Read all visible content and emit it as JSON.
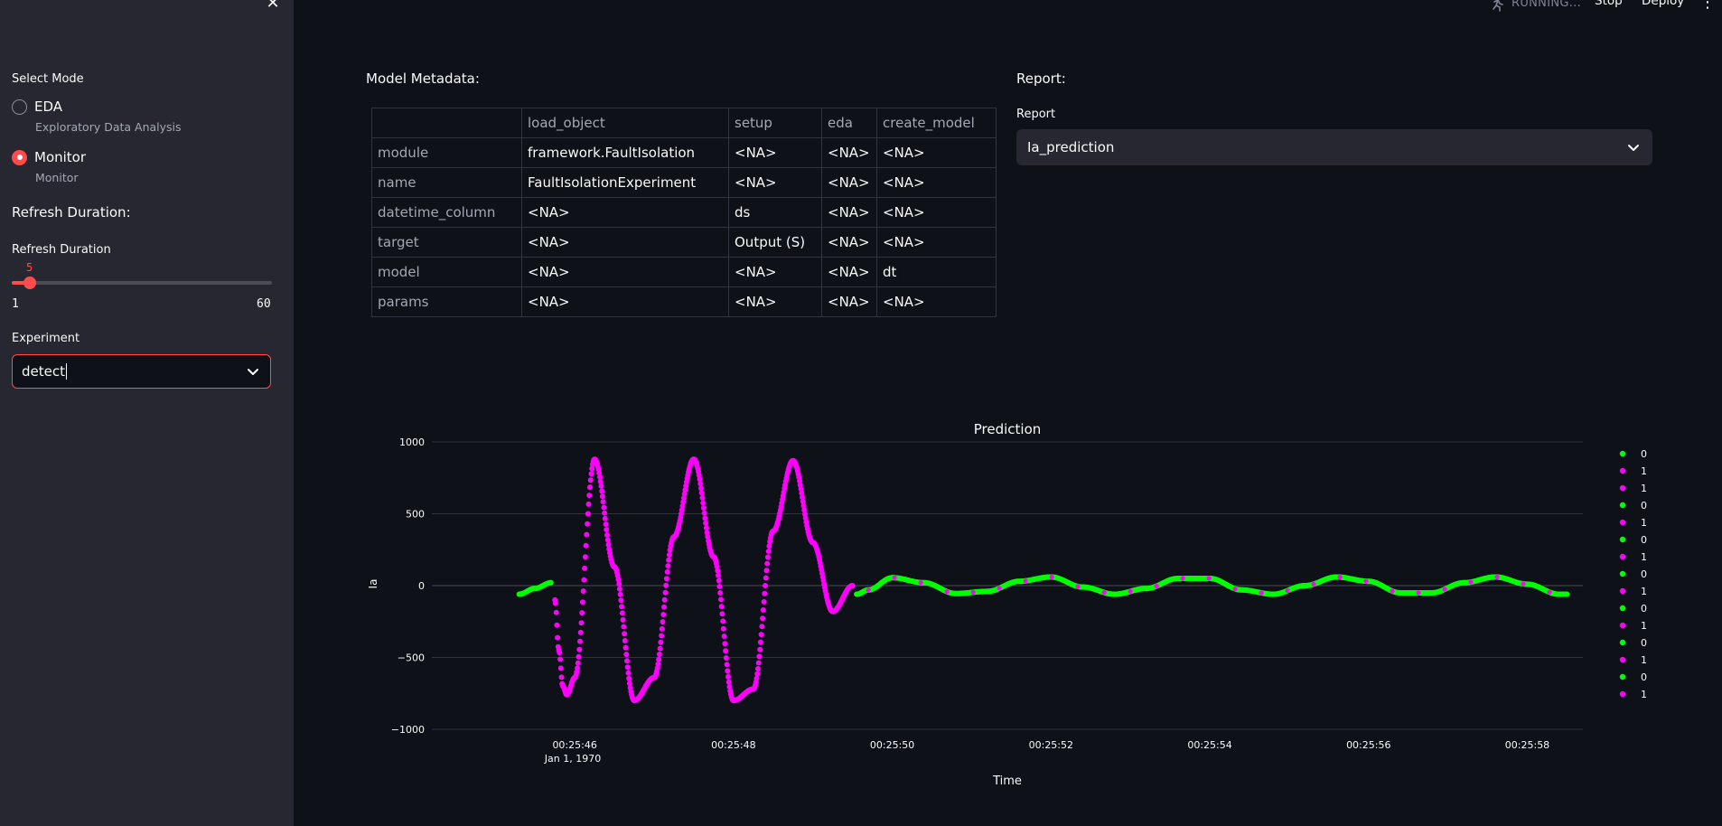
{
  "sidebar": {
    "close_icon": "close-icon",
    "mode_label": "Select Mode",
    "modes": [
      {
        "label": "EDA",
        "caption": "Exploratory Data Analysis",
        "selected": false
      },
      {
        "label": "Monitor",
        "caption": "Monitor",
        "selected": true
      }
    ],
    "refresh_heading": "Refresh Duration:",
    "refresh_label": "Refresh Duration",
    "refresh_value": "5",
    "refresh_min": "1",
    "refresh_max": "60",
    "experiment_label": "Experiment",
    "experiment_value": "detect"
  },
  "header": {
    "status": "RUNNING...",
    "stop": "Stop",
    "deploy": "Deploy",
    "menu_icon": "kebab-menu-icon"
  },
  "metadata": {
    "title": "Model Metadata:",
    "columns": [
      "",
      "load_object",
      "setup",
      "eda",
      "create_model"
    ],
    "rows": [
      [
        "module",
        "framework.FaultIsolation",
        "<NA>",
        "<NA>",
        "<NA>"
      ],
      [
        "name",
        "FaultIsolationExperiment",
        "<NA>",
        "<NA>",
        "<NA>"
      ],
      [
        "datetime_column",
        "<NA>",
        "ds",
        "<NA>",
        "<NA>"
      ],
      [
        "target",
        "<NA>",
        "Output (S)",
        "<NA>",
        "<NA>"
      ],
      [
        "model",
        "<NA>",
        "<NA>",
        "<NA>",
        "dt"
      ],
      [
        "params",
        "<NA>",
        "<NA>",
        "<NA>",
        "<NA>"
      ]
    ]
  },
  "report": {
    "title": "Report:",
    "label": "Report",
    "value": "Ia_prediction"
  },
  "colors": {
    "accent": "#ff4b4b",
    "class0": "#00ff00",
    "class1": "#ff00ff"
  },
  "chart_data": {
    "type": "scatter",
    "title": "Prediction",
    "xlabel": "Time",
    "ylabel": "Ia",
    "x_ticks": [
      "00:25:46",
      "00:25:48",
      "00:25:50",
      "00:25:52",
      "00:25:54",
      "00:25:56",
      "00:25:58"
    ],
    "x_date_label": "Jan 1, 1970",
    "y_ticks": [
      "1000",
      "500",
      "0",
      "−500",
      "−1000"
    ],
    "ylim": [
      -1000,
      1000
    ],
    "xlim_seconds": [
      44.2,
      58.7
    ],
    "legend": [
      "0",
      "1",
      "1",
      "0",
      "1",
      "0",
      "1",
      "0",
      "1",
      "0",
      "1",
      "0",
      "1",
      "0",
      "1"
    ],
    "legend_classes": [
      0,
      1,
      1,
      0,
      1,
      0,
      1,
      0,
      1,
      0,
      1,
      0,
      1,
      0,
      1
    ],
    "series": [
      {
        "class": 0,
        "x": [
          45.3,
          45.5,
          45.7
        ],
        "y": [
          -60,
          -20,
          20
        ]
      },
      {
        "class": 1,
        "x": [
          45.75,
          45.8,
          45.85,
          45.9,
          46.0,
          46.25,
          46.5,
          46.75,
          47.0,
          47.25,
          47.5,
          47.75,
          48.0,
          48.25,
          48.5,
          48.75,
          49.0,
          49.25,
          49.5
        ],
        "y": [
          -100,
          -450,
          -700,
          -760,
          -640,
          880,
          130,
          -800,
          -640,
          340,
          880,
          200,
          -800,
          -720,
          380,
          870,
          300,
          -180,
          0
        ]
      },
      {
        "class": 0,
        "x": [
          49.55,
          49.7,
          50.0,
          50.4,
          50.8,
          51.2,
          51.6,
          52.0,
          52.4,
          52.8,
          53.2,
          53.6,
          54.0,
          54.4,
          54.8,
          55.2,
          55.6,
          56.0,
          56.4,
          56.8,
          57.2,
          57.6,
          58.0,
          58.4,
          58.5
        ],
        "y": [
          -60,
          -30,
          55,
          20,
          -55,
          -40,
          30,
          60,
          -10,
          -60,
          -20,
          50,
          50,
          -30,
          -60,
          0,
          60,
          30,
          -50,
          -50,
          20,
          60,
          10,
          -60,
          -60
        ]
      }
    ]
  }
}
